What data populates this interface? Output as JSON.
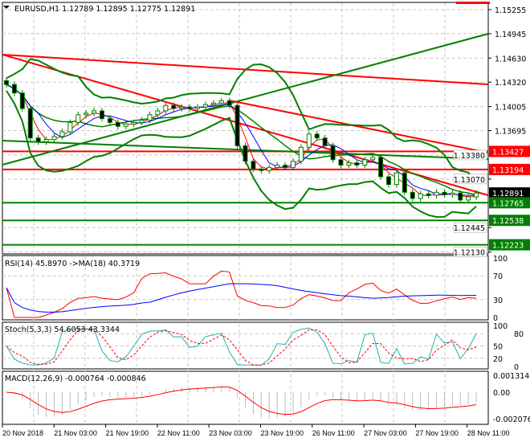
{
  "header": {
    "symbol": "EURUSD,H1",
    "ohlc": "1.12789 1.12895 1.12775 1.12891"
  },
  "price_axis": [
    "1.15255",
    "1.14945",
    "1.14630",
    "1.14320",
    "1.14005",
    "1.13695",
    "1.13380",
    "1.13070",
    "1.12445",
    "1.12130"
  ],
  "price_badges": [
    {
      "text": "1.13427",
      "price": 1.13427,
      "color": "#ff0000"
    },
    {
      "text": "1.13194",
      "price": 1.13194,
      "color": "#ff0000"
    },
    {
      "text": "1.12891",
      "price": 1.12891,
      "color": "#000000"
    },
    {
      "text": "1.12765",
      "price": 1.12765,
      "color": "#008000"
    },
    {
      "text": "1.12538",
      "price": 1.12538,
      "color": "#008000"
    },
    {
      "text": "1.12223",
      "price": 1.12223,
      "color": "#008000"
    }
  ],
  "indicators": {
    "rsi": {
      "label": "RSI(14) 45.8970  ->MA(18) 40.3719",
      "levels": [
        "100",
        "70",
        "30",
        "0"
      ]
    },
    "stoch": {
      "label": "Stoch(5,3,3) 54.6053 43.3344",
      "levels": [
        "100",
        "80",
        "50",
        "20",
        "0"
      ]
    },
    "macd": {
      "label": "MACD(12,26,9) -0.000764 -0.000846",
      "levels": [
        "0.001314",
        "0.00",
        "-0.002076"
      ]
    }
  },
  "time_axis": [
    "20 Nov 2018",
    "21 Nov 03:00",
    "21 Nov 19:00",
    "22 Nov 11:00",
    "23 Nov 03:00",
    "23 Nov 19:00",
    "26 Nov 11:00",
    "27 Nov 03:00",
    "27 Nov 19:00",
    "28 Nov 11:00"
  ],
  "colors": {
    "bull": "#008000",
    "bear": "#008000",
    "resistance": "#ff0000",
    "support": "#008000",
    "bands": "#008000"
  },
  "chart_data": {
    "type": "candlestick",
    "closes": [
      1.1429,
      1.1418,
      1.1398,
      1.136,
      1.1355,
      1.1358,
      1.1362,
      1.1368,
      1.138,
      1.139,
      1.1392,
      1.1395,
      1.1385,
      1.138,
      1.1375,
      1.1378,
      1.138,
      1.1383,
      1.139,
      1.1395,
      1.1402,
      1.1398,
      1.14,
      1.1398,
      1.14,
      1.1403,
      1.1405,
      1.1408,
      1.1402,
      1.135,
      1.133,
      1.132,
      1.1318,
      1.1322,
      1.1325,
      1.1322,
      1.133,
      1.1348,
      1.1365,
      1.136,
      1.135,
      1.1332,
      1.1325,
      1.1328,
      1.1325,
      1.1332,
      1.1335,
      1.131,
      1.13,
      1.1315,
      1.129,
      1.1282,
      1.1288,
      1.1286,
      1.129,
      1.1287,
      1.1289,
      1.128,
      1.1284,
      1.12891
    ],
    "horizontal_levels": [
      1.13427,
      1.13194,
      1.12765,
      1.12538,
      1.12223
    ],
    "trendlines": [
      {
        "color": "#ff0000",
        "from": 1.14675,
        "to": 1.14291
      },
      {
        "color": "#ff0000",
        "from": 1.14675,
        "to": 1.12861
      },
      {
        "color": "#008000",
        "from": 1.13255,
        "to": 1.14944
      },
      {
        "color": "#ff0000",
        "from": 1.14084,
        "to": 1.1341,
        "start_index": 28
      },
      {
        "color": "#008000",
        "from": 1.13566,
        "to": 1.13328
      }
    ]
  }
}
